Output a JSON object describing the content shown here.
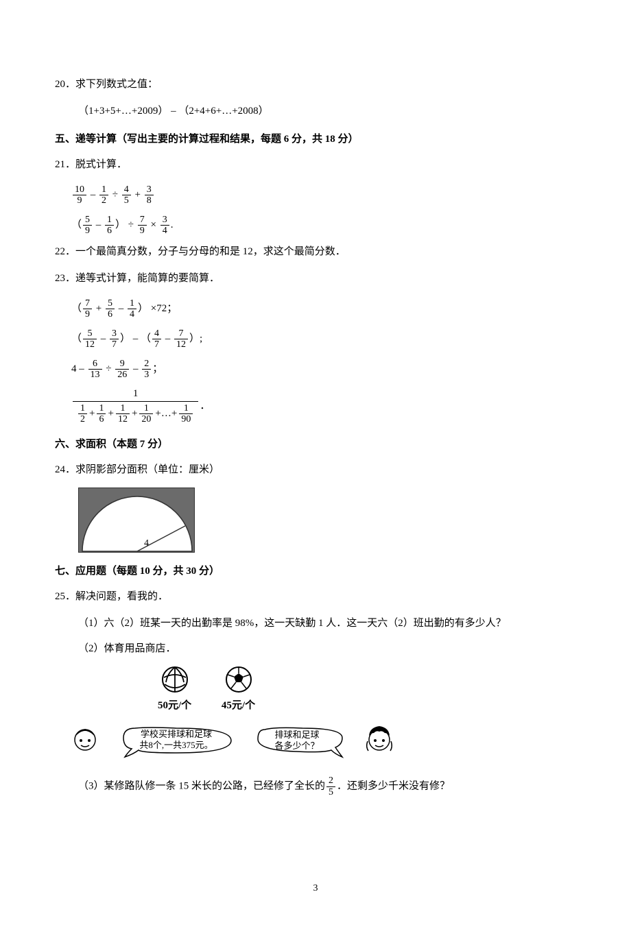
{
  "q20": {
    "num": "20．",
    "text": "求下列数式之值：",
    "expr": "（1+3+5+…+2009） – （2+4+6+…+2008）"
  },
  "section5": "五、递等计算（写出主要的计算过程和结果，每题 6 分，共 18 分）",
  "q21": {
    "num": "21．",
    "text": "脱式计算．",
    "line1": {
      "f1n": "10",
      "f1d": "9",
      "op1": "–",
      "f2n": "1",
      "f2d": "2",
      "op2": "÷",
      "f3n": "4",
      "f3d": "5",
      "op3": "+",
      "f4n": "3",
      "f4d": "8"
    },
    "line2": {
      "open": "（",
      "f1n": "5",
      "f1d": "9",
      "op1": "–",
      "f2n": "1",
      "f2d": "6",
      "close": "）",
      "op2": "÷",
      "f3n": "7",
      "f3d": "9",
      "op3": "×",
      "f4n": "3",
      "f4d": "4",
      "tail": "."
    }
  },
  "q22": {
    "num": "22．",
    "text": "一个最简真分数，分子与分母的和是 12，求这个最简分数．"
  },
  "q23": {
    "num": "23．",
    "text": "递等式计算，能简算的要简算．",
    "line1": {
      "open": "（",
      "f1n": "7",
      "f1d": "9",
      "op1": "+",
      "f2n": "5",
      "f2d": "6",
      "op2": "–",
      "f3n": "1",
      "f3d": "4",
      "close": "）",
      "tail": "×72；"
    },
    "line2": {
      "open": "（",
      "f1n": "5",
      "f1d": "12",
      "op1": "–",
      "f2n": "3",
      "f2d": "7",
      "close": "）",
      "mid": "–",
      "open2": "（",
      "f3n": "4",
      "f3d": "7",
      "op2": "–",
      "f4n": "7",
      "f4d": "12",
      "close2": "）;"
    },
    "line3": {
      "lead": "4 –",
      "f1n": "6",
      "f1d": "13",
      "op1": "÷",
      "f2n": "9",
      "f2d": "26",
      "op2": "–",
      "f3n": "2",
      "f3d": "3",
      "tail": "；"
    },
    "line4": {
      "numerator": "1",
      "den_parts": [
        {
          "n": "1",
          "d": "2"
        },
        {
          "op": "+"
        },
        {
          "n": "1",
          "d": "6"
        },
        {
          "op": "+"
        },
        {
          "n": "1",
          "d": "12"
        },
        {
          "op": "+"
        },
        {
          "n": "1",
          "d": "20"
        },
        {
          "op": "+…+"
        },
        {
          "n": "1",
          "d": "90"
        }
      ],
      "tail": "．"
    }
  },
  "section6": "六、求面积（本题 7 分）",
  "q24": {
    "num": "24．",
    "text": "求阴影部分面积（单位：厘米）",
    "radius_label": "4",
    "fig": {
      "width": 170,
      "height": 95,
      "shade_color": "#6b6b6b",
      "bg": "#ffffff",
      "stroke": "#333333"
    }
  },
  "section7": "七、应用题（每题 10 分，共 30 分）",
  "q25": {
    "num": "25．",
    "text": "解决问题，看我的．",
    "sub1": "（1）六（2）班某一天的出勤率是 98%，这一天缺勤 1 人．这一天六（2）班出勤的有多少人？",
    "sub2": "（2）体育用品商店．",
    "price1": "50元/个",
    "price2": "45元/个",
    "dialog1_line1": "学校买排球和足球",
    "dialog1_line2": "共8个,一共375元。",
    "dialog2_line1": "排球和足球",
    "dialog2_line2": "各多少个？",
    "sub3_pre": "（3）某修路队修一条 15 米长的公路，已经修了全长的",
    "sub3_frac_n": "2",
    "sub3_frac_d": "5",
    "sub3_post": "．还剩多少千米没有修？"
  },
  "page_number": "3"
}
